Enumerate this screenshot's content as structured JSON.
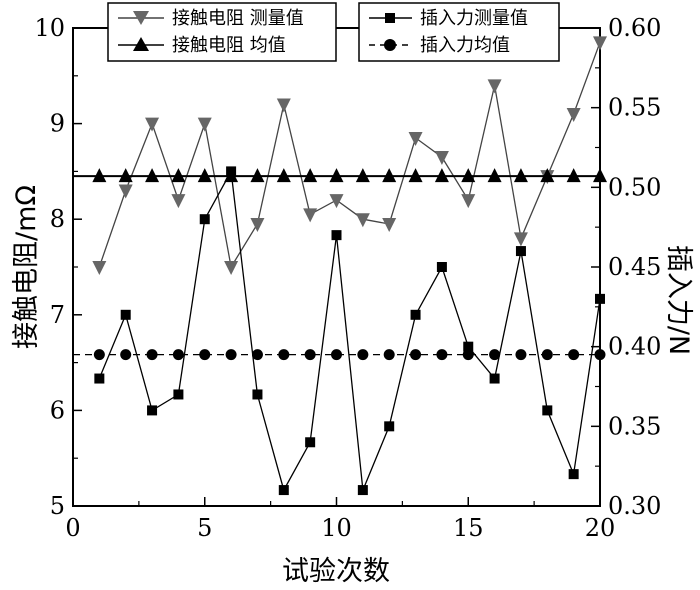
{
  "chart_data": {
    "type": "line",
    "xlabel": "试验次数",
    "ylabel_left": "接触电阻/mΩ",
    "ylabel_right": "插入力/N",
    "xlim": [
      0,
      20
    ],
    "ylim_left": [
      5,
      10
    ],
    "ylim_right": [
      0.3,
      0.6
    ],
    "x_ticks": [
      "0",
      "5",
      "10",
      "15",
      "20"
    ],
    "y_left_ticks": [
      "5",
      "6",
      "7",
      "8",
      "9",
      "10"
    ],
    "y_right_ticks": [
      "0.30",
      "0.35",
      "0.40",
      "0.45",
      "0.50",
      "0.55",
      "0.60"
    ],
    "grid": false,
    "x": [
      1,
      2,
      3,
      4,
      5,
      6,
      7,
      8,
      9,
      10,
      11,
      12,
      13,
      14,
      15,
      16,
      17,
      18,
      19,
      20
    ],
    "series": [
      {
        "name": "接触电阻 测量值",
        "axis": "left",
        "marker": "triangle-down",
        "line": "solid",
        "color": "#444444",
        "values": [
          7.5,
          8.3,
          9.0,
          8.2,
          9.0,
          7.5,
          7.95,
          9.2,
          8.05,
          8.2,
          8.0,
          7.95,
          8.85,
          8.65,
          8.2,
          9.4,
          7.8,
          8.45,
          9.1,
          9.85
        ]
      },
      {
        "name": "接触电阻 均值",
        "axis": "left",
        "marker": "triangle-up",
        "line": "solid",
        "color": "#000000",
        "values": [
          8.45,
          8.45,
          8.45,
          8.45,
          8.45,
          8.45,
          8.45,
          8.45,
          8.45,
          8.45,
          8.45,
          8.45,
          8.45,
          8.45,
          8.45,
          8.45,
          8.45,
          8.45,
          8.45,
          8.45
        ]
      },
      {
        "name": "插入力测量值",
        "axis": "right",
        "marker": "square",
        "line": "solid",
        "color": "#000000",
        "values": [
          0.38,
          0.42,
          0.36,
          0.37,
          0.48,
          0.51,
          0.37,
          0.31,
          0.34,
          0.47,
          0.31,
          0.35,
          0.42,
          0.45,
          0.4,
          0.38,
          0.46,
          0.36,
          0.32,
          0.43
        ]
      },
      {
        "name": "插入力均值",
        "axis": "right",
        "marker": "circle",
        "line": "dashed",
        "color": "#000000",
        "values": [
          0.395,
          0.395,
          0.395,
          0.395,
          0.395,
          0.395,
          0.395,
          0.395,
          0.395,
          0.395,
          0.395,
          0.395,
          0.395,
          0.395,
          0.395,
          0.395,
          0.395,
          0.395,
          0.395,
          0.395
        ]
      }
    ],
    "legend": {
      "left_box": [
        "接触电阻 测量值",
        "接触电阻 均值"
      ],
      "right_box": [
        "插入力测量值",
        "插入力均值"
      ],
      "placement": "top"
    }
  }
}
